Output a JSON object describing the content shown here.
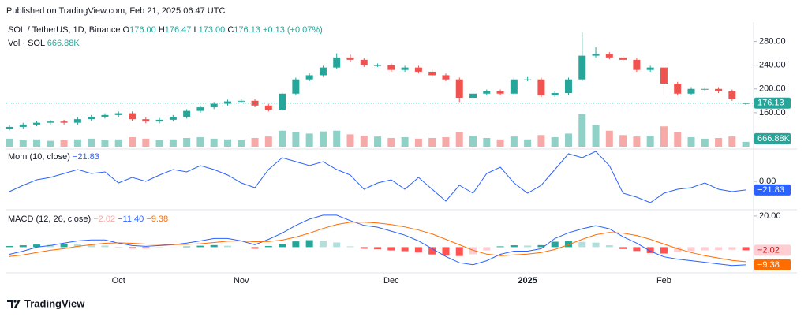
{
  "header": {
    "published": "Published on TradingView.com, Feb 21, 2025 06:47 UTC"
  },
  "footer": {
    "brand": "TradingView"
  },
  "chart_data": [
    {
      "type": "candlestick",
      "symbol": "SOL / TetherUS, 1D, Binance",
      "ohlc_legend": [
        {
          "label": "O",
          "value": "176.00"
        },
        {
          "label": "H",
          "value": "176.47"
        },
        {
          "label": "L",
          "value": "173.00"
        },
        {
          "label": "C",
          "value": "176.13"
        }
      ],
      "change": "+0.13 (+0.07%)",
      "categories": [
        null,
        null,
        null,
        null,
        null,
        null,
        null,
        null,
        "Oct",
        null,
        null,
        null,
        null,
        null,
        null,
        null,
        null,
        "Nov",
        null,
        null,
        null,
        null,
        null,
        null,
        null,
        null,
        null,
        null,
        "Dec",
        null,
        null,
        null,
        null,
        null,
        null,
        null,
        null,
        null,
        "2025",
        null,
        null,
        null,
        null,
        null,
        null,
        null,
        null,
        null,
        "Feb",
        null,
        null,
        null,
        null,
        null,
        null
      ],
      "open": [
        133,
        136,
        140,
        143,
        145,
        143,
        149,
        153,
        156,
        159,
        149,
        145,
        148,
        153,
        163,
        169,
        175,
        179,
        180,
        172,
        165,
        192,
        216,
        223,
        236,
        253,
        249,
        240,
        240,
        232,
        236,
        229,
        223,
        216,
        185,
        192,
        196,
        192,
        216,
        216,
        189,
        193,
        216,
        256,
        259,
        253,
        249,
        232,
        236,
        209,
        192,
        200,
        200,
        196,
        176
      ],
      "high": [
        139,
        143,
        146,
        148,
        148,
        152,
        156,
        159,
        162,
        162,
        152,
        151,
        156,
        166,
        172,
        178,
        182,
        183,
        183,
        175,
        195,
        219,
        226,
        239,
        260,
        258,
        252,
        243,
        243,
        239,
        239,
        232,
        226,
        219,
        195,
        199,
        199,
        219,
        220,
        219,
        196,
        219,
        295,
        270,
        262,
        256,
        252,
        239,
        239,
        212,
        203,
        203,
        203,
        199,
        176.47
      ],
      "low": [
        130,
        133,
        137,
        140,
        140,
        140,
        146,
        150,
        153,
        146,
        142,
        142,
        145,
        150,
        160,
        166,
        172,
        176,
        169,
        162,
        162,
        189,
        213,
        220,
        233,
        246,
        237,
        237,
        229,
        229,
        226,
        220,
        213,
        178,
        182,
        189,
        189,
        189,
        213,
        186,
        186,
        190,
        213,
        253,
        250,
        246,
        229,
        229,
        190,
        189,
        189,
        197,
        193,
        180,
        173
      ],
      "close": [
        136,
        140,
        143,
        145,
        143,
        149,
        153,
        156,
        159,
        149,
        145,
        148,
        153,
        163,
        169,
        175,
        179,
        180,
        172,
        165,
        192,
        216,
        223,
        236,
        253,
        249,
        240,
        240,
        232,
        236,
        229,
        223,
        216,
        185,
        192,
        196,
        192,
        216,
        216,
        189,
        193,
        216,
        256,
        259,
        253,
        249,
        232,
        236,
        209,
        192,
        200,
        200,
        196,
        183,
        176.13
      ],
      "up_color": "#26a69a",
      "down_color": "#ef5350",
      "ylim": [
        100,
        310
      ],
      "yticks": [
        {
          "value": 160,
          "label": "160.00"
        },
        {
          "value": 200,
          "label": "200.00"
        },
        {
          "value": 240,
          "label": "240.00"
        },
        {
          "value": 280,
          "label": "280.00"
        }
      ],
      "volume": {
        "name": "Vol · SOL",
        "last_label": "666.88K",
        "values": [
          1100,
          900,
          1000,
          800,
          900,
          1000,
          1100,
          900,
          1000,
          1300,
          1100,
          900,
          1000,
          1200,
          1300,
          1100,
          1000,
          900,
          1200,
          1400,
          2200,
          2000,
          1800,
          2100,
          2200,
          1700,
          1500,
          1400,
          1200,
          1300,
          1100,
          1200,
          1300,
          2000,
          1500,
          1200,
          1000,
          1400,
          1000,
          1600,
          1300,
          1800,
          4500,
          3000,
          2200,
          1600,
          1400,
          1500,
          2800,
          2000,
          1300,
          1100,
          1200,
          1400,
          666.88
        ],
        "up_color": "#8fd0c7",
        "down_color": "#f7a9a7",
        "ylim": [
          0,
          5000
        ]
      }
    },
    {
      "type": "line",
      "title": "Mom (10, close)",
      "last_label": "−21.83",
      "color": "#2962ff",
      "values": [
        -26,
        -10,
        4,
        10,
        20,
        30,
        20,
        24,
        -4,
        10,
        0,
        16,
        30,
        24,
        40,
        30,
        16,
        -4,
        -16,
        30,
        60,
        50,
        40,
        50,
        30,
        16,
        -20,
        -4,
        4,
        -20,
        10,
        -20,
        -50,
        -10,
        -30,
        20,
        36,
        -4,
        -30,
        -10,
        30,
        70,
        60,
        76,
        40,
        -30,
        -40,
        -54,
        -30,
        -20,
        -16,
        -4,
        -20,
        -26,
        -21.83
      ],
      "ylim": [
        -70,
        80
      ],
      "yticks": [
        {
          "value": 0,
          "label": "0.00"
        }
      ]
    },
    {
      "type": "macd",
      "title": "MACD (12, 26, close)",
      "histogram": {
        "last_label": "−2.02",
        "colors": {
          "pos_rising": "#26a69a",
          "pos_falling": "#b2dfdb",
          "neg_falling": "#ff5252",
          "neg_rising": "#ffcdd2"
        },
        "values": [
          0.7,
          1.2,
          1.7,
          1.5,
          1.8,
          1.7,
          1.5,
          1,
          -0.1,
          -0.7,
          -0.7,
          -0.4,
          -0.1,
          0.4,
          0.9,
          1.3,
          0.9,
          0,
          -1,
          0.7,
          2.2,
          3.7,
          4.5,
          4.2,
          3,
          0.5,
          -1,
          -1.4,
          -2.1,
          -2.6,
          -3.5,
          -4.7,
          -5.5,
          -5.7,
          -4.6,
          -2.1,
          0.5,
          1.2,
          1,
          1.3,
          3.5,
          3.9,
          3.4,
          2.9,
          1.2,
          -1.2,
          -2.5,
          -3.8,
          -4.1,
          -3.4,
          -2.6,
          -2.1,
          -1.9,
          -1.7,
          -2.02
        ]
      },
      "macd": {
        "last_label": "−11.40",
        "color": "#2962ff",
        "values": [
          -4.6,
          -2.6,
          0,
          1,
          2.6,
          4,
          4.6,
          4.6,
          2.6,
          1,
          0.5,
          1,
          1.5,
          2.6,
          4,
          5.6,
          5.6,
          4,
          1.5,
          5,
          9,
          14,
          18,
          20.5,
          20.5,
          17,
          14,
          12.8,
          10.3,
          7.7,
          4,
          -1,
          -6,
          -10,
          -11.3,
          -8.7,
          -4.6,
          -2.6,
          -2.6,
          -1,
          5.6,
          9.2,
          11.8,
          13.8,
          11.8,
          6.7,
          2.6,
          -2.6,
          -6.2,
          -7.7,
          -8.7,
          -9.7,
          -10.8,
          -11.8,
          -11.4
        ]
      },
      "signal": {
        "last_label": "−9.38",
        "color": "#ff6d00",
        "values": [
          -6,
          -5,
          -3.5,
          -2,
          -1,
          0.5,
          1.5,
          2.5,
          2.8,
          2.5,
          2,
          1.8,
          1.7,
          1.8,
          2.2,
          3,
          3.8,
          4,
          3.5,
          3.6,
          4.5,
          6.5,
          9,
          12,
          14.5,
          16,
          16,
          15.5,
          14.5,
          13,
          11,
          8.5,
          5,
          1.5,
          -2,
          -4.5,
          -5.5,
          -5,
          -4.5,
          -3.5,
          -1.5,
          1.5,
          5,
          8,
          9.5,
          9,
          7.5,
          5,
          2,
          -1,
          -3.5,
          -5.5,
          -7,
          -8.5,
          -9.38
        ]
      },
      "ylim": [
        -16,
        23
      ],
      "yticks": [
        {
          "value": 20,
          "label": "20.00"
        }
      ]
    }
  ]
}
